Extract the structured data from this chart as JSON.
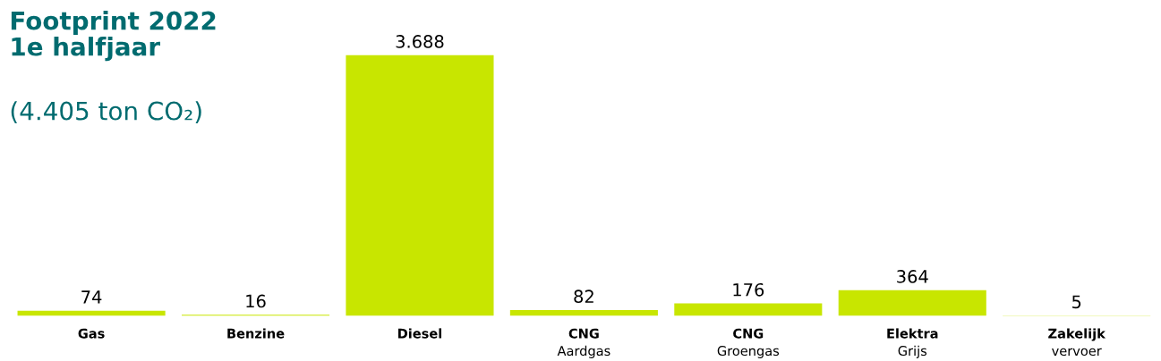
{
  "chart_data": {
    "type": "bar",
    "title": "Footprint 2022\n1e halfjaar",
    "subtitle": "(4.405 ton CO₂)",
    "categories": [
      "Gas",
      "Benzine",
      "Diesel",
      "CNG\nAardgas",
      "CNG\nGroengas",
      "Elektra\nGrijs",
      "Zakelijk\nvervoer"
    ],
    "values": [
      74,
      16,
      3688,
      82,
      176,
      364,
      5
    ],
    "value_labels": [
      "74",
      "16",
      "3.688",
      "82",
      "176",
      "364",
      "5"
    ],
    "color": "#c8e600",
    "grid": false,
    "legend": false
  }
}
